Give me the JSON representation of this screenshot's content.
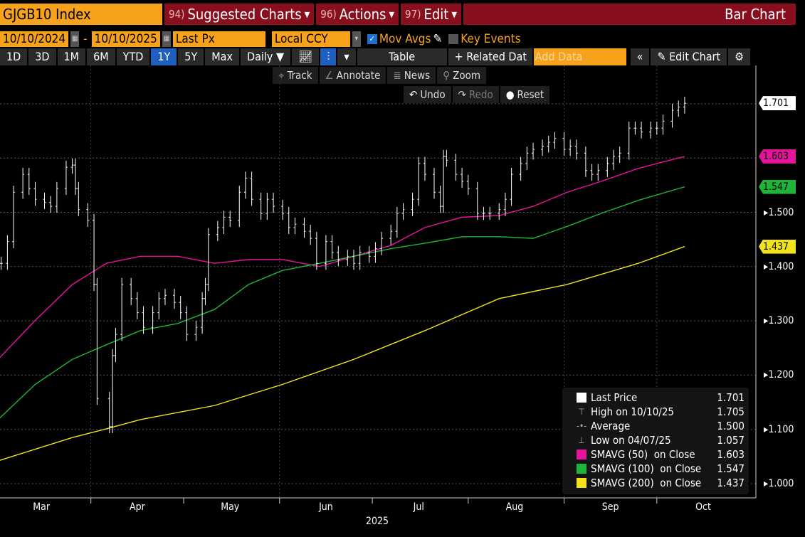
{
  "header": {
    "ticker": "GJGB10 Index",
    "menus": [
      {
        "num": "94)",
        "label": "Suggested Charts"
      },
      {
        "num": "96)",
        "label": "Actions"
      },
      {
        "num": "97)",
        "label": "Edit"
      }
    ],
    "title": "Bar Chart"
  },
  "controls": {
    "start_date": "10/10/2024",
    "sep": "-",
    "end_date": "10/10/2025",
    "field": "Last Px",
    "currency": "Local CCY",
    "mov_avgs": "Mov Avgs",
    "key_events": "Key Events"
  },
  "toolbar": {
    "ranges": [
      "1D",
      "3D",
      "1M",
      "6M",
      "YTD",
      "1Y",
      "5Y",
      "Max"
    ],
    "active_range": "1Y",
    "period": "Daily ▼",
    "table": "Table",
    "related": "+ Related Dat",
    "add_data_placeholder": "Add Data",
    "collapse": "«",
    "edit_chart": "Edit Chart"
  },
  "subtoolbar": {
    "track": "Track",
    "annotate": "Annotate",
    "news": "News",
    "zoom": "Zoom",
    "undo": "Undo",
    "redo": "Redo",
    "reset": "Reset"
  },
  "legend": [
    {
      "label": "Last Price",
      "value": "1.701",
      "swatch": "#ffffff"
    },
    {
      "label": "High on 10/10/25",
      "value": "1.705",
      "icon": "high-marker"
    },
    {
      "label": "Average",
      "value": "1.500",
      "icon": "average-marker"
    },
    {
      "label": "Low on 04/07/25",
      "value": "1.057",
      "icon": "low-marker"
    },
    {
      "label": "SMAVG (50)  on Close",
      "value": "1.603",
      "swatch": "#e6149a"
    },
    {
      "label": "SMAVG (100)  on Close",
      "value": "1.547",
      "swatch": "#1fb53a"
    },
    {
      "label": "SMAVG (200)  on Close",
      "value": "1.437",
      "swatch": "#f2e41c"
    }
  ],
  "chart_data": {
    "type": "bar",
    "ylim": [
      0.97,
      1.75
    ],
    "y_ticks": [
      "1.000",
      "1.100",
      "1.200",
      "1.300",
      "1.400",
      "1.500"
    ],
    "x_ticks": [
      "Mar",
      "Apr",
      "May",
      "Jun",
      "Jul",
      "Aug",
      "Sep",
      "Oct"
    ],
    "x_year": "2025",
    "grid": true,
    "legend_position": "bottom-right",
    "last_value_labels": [
      {
        "value": "1.701",
        "color": "#ffffff"
      },
      {
        "value": "1.603",
        "color": "#e6149a"
      },
      {
        "value": "1.547",
        "color": "#1fb53a"
      },
      {
        "value": "1.437",
        "color": "#f2e41c"
      }
    ],
    "price": {
      "dates": [
        "2025-03-03",
        "2025-03-05",
        "2025-03-07",
        "2025-03-10",
        "2025-03-12",
        "2025-03-14",
        "2025-03-17",
        "2025-03-19",
        "2025-03-21",
        "2025-03-24",
        "2025-03-26",
        "2025-03-27",
        "2025-03-28",
        "2025-03-31",
        "2025-04-02",
        "2025-04-03",
        "2025-04-07",
        "2025-04-08",
        "2025-04-09",
        "2025-04-11",
        "2025-04-14",
        "2025-04-16",
        "2025-04-18",
        "2025-04-21",
        "2025-04-23",
        "2025-04-25",
        "2025-04-28",
        "2025-04-30",
        "2025-05-02",
        "2025-05-05",
        "2025-05-07",
        "2025-05-08",
        "2025-05-09",
        "2025-05-12",
        "2025-05-14",
        "2025-05-16",
        "2025-05-19",
        "2025-05-21",
        "2025-05-23",
        "2025-05-26",
        "2025-05-28",
        "2025-05-30",
        "2025-06-02",
        "2025-06-04",
        "2025-06-06",
        "2025-06-09",
        "2025-06-11",
        "2025-06-13",
        "2025-06-16",
        "2025-06-18",
        "2025-06-20",
        "2025-06-23",
        "2025-06-25",
        "2025-06-27",
        "2025-06-30",
        "2025-07-02",
        "2025-07-04",
        "2025-07-07",
        "2025-07-09",
        "2025-07-11",
        "2025-07-14",
        "2025-07-16",
        "2025-07-18",
        "2025-07-21",
        "2025-07-23",
        "2025-07-24",
        "2025-07-25",
        "2025-07-28",
        "2025-07-30",
        "2025-08-01",
        "2025-08-04",
        "2025-08-06",
        "2025-08-08",
        "2025-08-11",
        "2025-08-13",
        "2025-08-15",
        "2025-08-18",
        "2025-08-20",
        "2025-08-22",
        "2025-08-25",
        "2025-08-27",
        "2025-08-29",
        "2025-09-01",
        "2025-09-03",
        "2025-09-05",
        "2025-09-08",
        "2025-09-10",
        "2025-09-12",
        "2025-09-15",
        "2025-09-17",
        "2025-09-19",
        "2025-09-22",
        "2025-09-24",
        "2025-09-26",
        "2025-09-29",
        "2025-10-01",
        "2025-10-03",
        "2025-10-06",
        "2025-10-08",
        "2025-10-10"
      ],
      "close": [
        1.406,
        1.446,
        1.537,
        1.57,
        1.544,
        1.524,
        1.518,
        1.511,
        1.544,
        1.583,
        1.587,
        1.544,
        1.505,
        1.485,
        1.367,
        1.157,
        1.105,
        1.236,
        1.275,
        1.367,
        1.341,
        1.315,
        1.288,
        1.315,
        1.341,
        1.347,
        1.334,
        1.315,
        1.275,
        1.288,
        1.341,
        1.367,
        1.459,
        1.472,
        1.491,
        1.485,
        1.537,
        1.563,
        1.524,
        1.498,
        1.524,
        1.511,
        1.498,
        1.472,
        1.478,
        1.465,
        1.452,
        1.406,
        1.446,
        1.426,
        1.413,
        1.419,
        1.406,
        1.426,
        1.419,
        1.433,
        1.452,
        1.465,
        1.498,
        1.505,
        1.524,
        1.59,
        1.57,
        1.537,
        1.511,
        1.603,
        1.596,
        1.57,
        1.557,
        1.544,
        1.498,
        1.498,
        1.498,
        1.505,
        1.524,
        1.57,
        1.59,
        1.609,
        1.616,
        1.622,
        1.629,
        1.636,
        1.616,
        1.622,
        1.609,
        1.577,
        1.57,
        1.577,
        1.59,
        1.603,
        1.609,
        1.655,
        1.655,
        1.648,
        1.655,
        1.655,
        1.668,
        1.688,
        1.694,
        1.701
      ]
    },
    "series": [
      {
        "name": "SMAVG (50)  on Close",
        "color": "#e6149a",
        "dates": [
          "2025-03-02",
          "2025-03-14",
          "2025-03-26",
          "2025-04-06",
          "2025-04-17",
          "2025-04-29",
          "2025-05-11",
          "2025-05-22",
          "2025-06-02",
          "2025-06-14",
          "2025-06-25",
          "2025-07-07",
          "2025-07-18",
          "2025-07-30",
          "2025-08-11",
          "2025-08-22",
          "2025-09-02",
          "2025-09-13",
          "2025-09-25",
          "2025-10-10"
        ],
        "values": [
          1.229,
          1.301,
          1.367,
          1.406,
          1.419,
          1.419,
          1.406,
          1.413,
          1.413,
          1.4,
          1.419,
          1.439,
          1.472,
          1.491,
          1.494,
          1.511,
          1.537,
          1.557,
          1.581,
          1.603
        ]
      },
      {
        "name": "SMAVG (100)  on Close",
        "color": "#1fb53a",
        "dates": [
          "2025-03-02",
          "2025-03-14",
          "2025-03-26",
          "2025-04-06",
          "2025-04-17",
          "2025-04-29",
          "2025-05-11",
          "2025-05-22",
          "2025-06-02",
          "2025-06-14",
          "2025-06-25",
          "2025-07-07",
          "2025-07-18",
          "2025-07-30",
          "2025-08-11",
          "2025-08-22",
          "2025-09-02",
          "2025-09-13",
          "2025-09-25",
          "2025-10-10"
        ],
        "values": [
          1.118,
          1.183,
          1.229,
          1.256,
          1.282,
          1.295,
          1.321,
          1.367,
          1.393,
          1.406,
          1.419,
          1.433,
          1.443,
          1.455,
          1.455,
          1.452,
          1.474,
          1.498,
          1.522,
          1.547
        ]
      },
      {
        "name": "SMAVG (200)  on Close",
        "color": "#f2e41c",
        "dates": [
          "2025-03-02",
          "2025-03-26",
          "2025-04-06",
          "2025-04-17",
          "2025-05-11",
          "2025-06-02",
          "2025-06-25",
          "2025-07-18",
          "2025-08-11",
          "2025-09-02",
          "2025-09-25",
          "2025-10-10"
        ],
        "values": [
          1.042,
          1.085,
          1.101,
          1.118,
          1.144,
          1.183,
          1.229,
          1.282,
          1.341,
          1.367,
          1.406,
          1.437
        ]
      }
    ]
  }
}
